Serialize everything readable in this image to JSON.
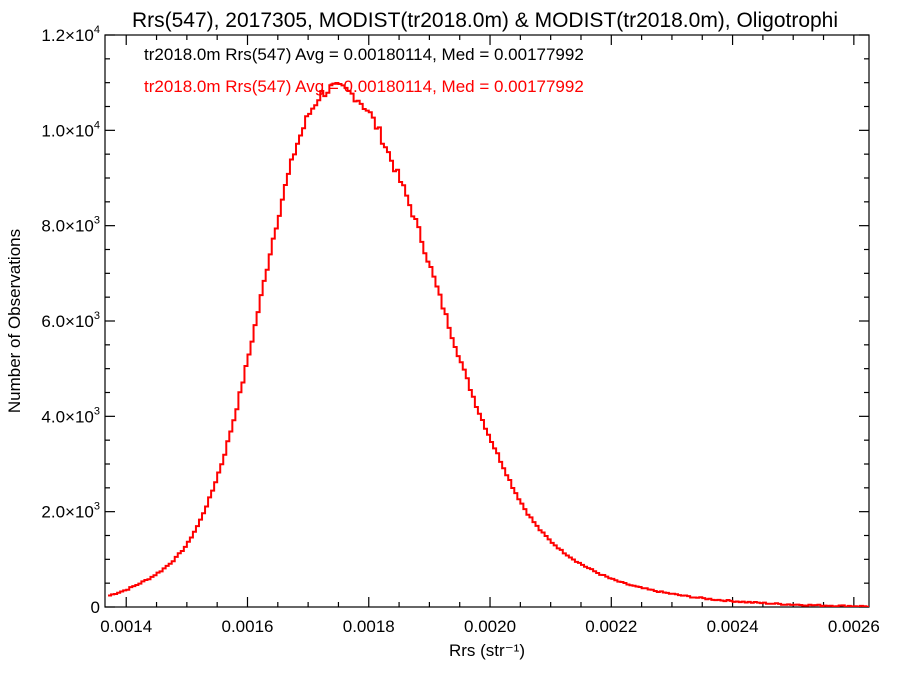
{
  "chart_data": {
    "type": "line",
    "title": "Rrs(547), 2017305, MODIST(tr2018.0m) & MODIST(tr2018.0m), Oligotrophi",
    "xlabel": "Rrs (str⁻¹)",
    "ylabel": "Number of Observations",
    "xlim": [
      0.001365,
      0.002625
    ],
    "ylim": [
      0,
      12000
    ],
    "x_scale": "linear",
    "y_scale": "linear",
    "grid": false,
    "x_ticks": [
      0.0014,
      0.0016,
      0.0018,
      0.002,
      0.0022,
      0.0024,
      0.0026
    ],
    "x_tick_labels": [
      "0.0014",
      "0.0016",
      "0.0018",
      "0.0020",
      "0.0022",
      "0.0024",
      "0.0026"
    ],
    "y_ticks": [
      0,
      2000,
      4000,
      6000,
      8000,
      10000,
      12000
    ],
    "y_tick_labels": [
      {
        "mantissa": "0",
        "exponent": ""
      },
      {
        "mantissa": "2.0×10",
        "exponent": "3"
      },
      {
        "mantissa": "4.0×10",
        "exponent": "3"
      },
      {
        "mantissa": "6.0×10",
        "exponent": "3"
      },
      {
        "mantissa": "8.0×10",
        "exponent": "3"
      },
      {
        "mantissa": "1.0×10",
        "exponent": "4"
      },
      {
        "mantissa": "1.2×10",
        "exponent": "4"
      }
    ],
    "annotations": [
      {
        "text": "tr2018.0m Rrs(547) Avg = 0.00180114, Med = 0.00177992",
        "color": "#000000"
      },
      {
        "text": "tr2018.0m Rrs(547) Avg = 0.00180114, Med = 0.00177992",
        "color": "#ff0000"
      }
    ],
    "series": [
      {
        "style": "step",
        "color": "#ff0000",
        "x": [
          0.00137,
          0.0014,
          0.00142,
          0.00144,
          0.00146,
          0.00148,
          0.0015,
          0.00152,
          0.00154,
          0.00156,
          0.00158,
          0.0016,
          0.00162,
          0.00164,
          0.00166,
          0.00168,
          0.0017,
          0.00172,
          0.00174,
          0.00176,
          0.00178,
          0.0018,
          0.00182,
          0.00184,
          0.00186,
          0.00188,
          0.0019,
          0.00192,
          0.00194,
          0.00196,
          0.00198,
          0.002,
          0.00202,
          0.00204,
          0.00206,
          0.00208,
          0.0021,
          0.00212,
          0.00214,
          0.00216,
          0.00218,
          0.0022,
          0.00222,
          0.00224,
          0.00226,
          0.00228,
          0.0023,
          0.00232,
          0.00234,
          0.00236,
          0.00238,
          0.0024,
          0.00242,
          0.00244,
          0.00246,
          0.00248,
          0.0025,
          0.00252,
          0.00254,
          0.00256,
          0.00258,
          0.0026,
          0.00262
        ],
        "y": [
          230,
          360,
          480,
          610,
          780,
          1000,
          1300,
          1750,
          2350,
          3100,
          4050,
          5150,
          6350,
          7600,
          8700,
          9650,
          10300,
          10750,
          10900,
          10850,
          10700,
          10400,
          9900,
          9300,
          8700,
          8000,
          7200,
          6400,
          5600,
          4850,
          4150,
          3550,
          3000,
          2450,
          2000,
          1650,
          1380,
          1160,
          980,
          830,
          700,
          590,
          500,
          430,
          370,
          320,
          275,
          235,
          200,
          170,
          145,
          125,
          105,
          90,
          75,
          62,
          52,
          44,
          36,
          30,
          25,
          20,
          16
        ]
      }
    ]
  }
}
